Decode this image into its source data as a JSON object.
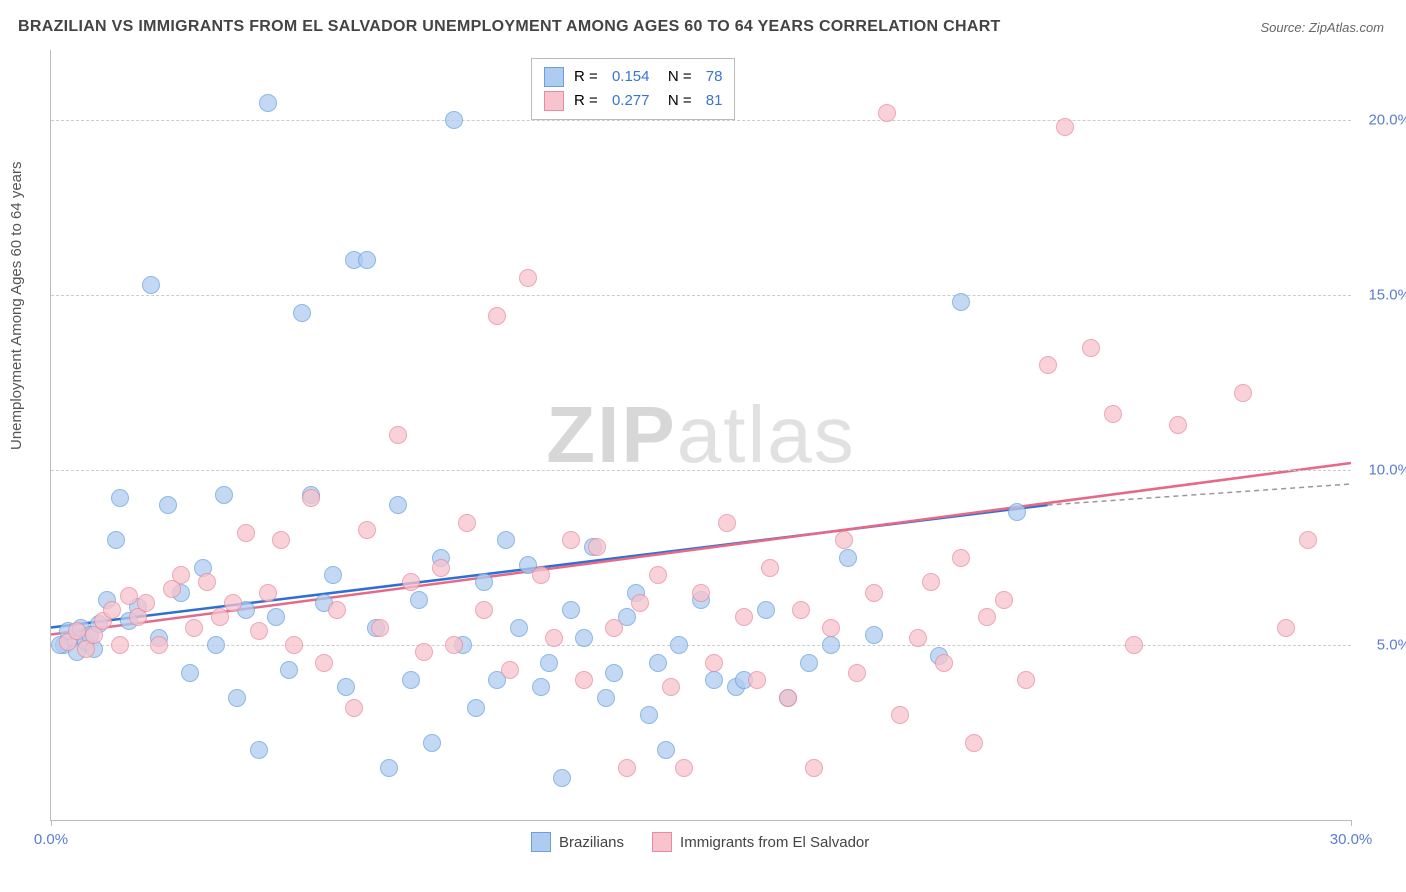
{
  "title": "BRAZILIAN VS IMMIGRANTS FROM EL SALVADOR UNEMPLOYMENT AMONG AGES 60 TO 64 YEARS CORRELATION CHART",
  "source": "Source: ZipAtlas.com",
  "ylabel": "Unemployment Among Ages 60 to 64 years",
  "watermark_a": "ZIP",
  "watermark_b": "atlas",
  "chart": {
    "type": "scatter",
    "xlim": [
      0,
      30
    ],
    "ylim": [
      0,
      22
    ],
    "xticks": [
      0,
      30
    ],
    "xtick_labels": [
      "0.0%",
      "30.0%"
    ],
    "yticks": [
      5,
      10,
      15,
      20
    ],
    "ytick_labels": [
      "5.0%",
      "10.0%",
      "15.0%",
      "20.0%"
    ],
    "grid_color": "#cccccc",
    "marker_radius": 8,
    "series": [
      {
        "name": "Brazilians",
        "fill": "#aeccf0",
        "stroke": "#6aa0e0",
        "line_color": "#2f6fd1",
        "r": "0.154",
        "n": "78",
        "trend": {
          "x1": 0,
          "y1": 5.5,
          "x2": 23,
          "y2": 9.0,
          "x2_dash": 30,
          "y2_dash": 9.6
        },
        "points": [
          [
            0.3,
            5.0
          ],
          [
            0.5,
            5.2
          ],
          [
            0.6,
            4.8
          ],
          [
            0.8,
            5.1
          ],
          [
            1.0,
            4.9
          ],
          [
            0.4,
            5.4
          ],
          [
            0.7,
            5.5
          ],
          [
            0.2,
            5.0
          ],
          [
            0.9,
            5.3
          ],
          [
            1.1,
            5.6
          ],
          [
            1.3,
            6.3
          ],
          [
            1.5,
            8.0
          ],
          [
            1.6,
            9.2
          ],
          [
            1.8,
            5.7
          ],
          [
            2.0,
            6.1
          ],
          [
            2.3,
            15.3
          ],
          [
            2.5,
            5.2
          ],
          [
            2.7,
            9.0
          ],
          [
            3.0,
            6.5
          ],
          [
            3.2,
            4.2
          ],
          [
            3.5,
            7.2
          ],
          [
            3.8,
            5.0
          ],
          [
            4.0,
            9.3
          ],
          [
            4.3,
            3.5
          ],
          [
            4.5,
            6.0
          ],
          [
            4.8,
            2.0
          ],
          [
            5.0,
            20.5
          ],
          [
            5.2,
            5.8
          ],
          [
            5.5,
            4.3
          ],
          [
            5.8,
            14.5
          ],
          [
            6.0,
            9.3
          ],
          [
            6.3,
            6.2
          ],
          [
            6.5,
            7.0
          ],
          [
            6.8,
            3.8
          ],
          [
            7.0,
            16.0
          ],
          [
            7.3,
            16.0
          ],
          [
            7.5,
            5.5
          ],
          [
            7.8,
            1.5
          ],
          [
            8.0,
            9.0
          ],
          [
            8.3,
            4.0
          ],
          [
            8.5,
            6.3
          ],
          [
            8.8,
            2.2
          ],
          [
            9.0,
            7.5
          ],
          [
            9.3,
            20.0
          ],
          [
            9.5,
            5.0
          ],
          [
            9.8,
            3.2
          ],
          [
            10.0,
            6.8
          ],
          [
            10.3,
            4.0
          ],
          [
            10.5,
            8.0
          ],
          [
            10.8,
            5.5
          ],
          [
            11.0,
            7.3
          ],
          [
            11.3,
            3.8
          ],
          [
            11.5,
            4.5
          ],
          [
            11.8,
            1.2
          ],
          [
            12.0,
            6.0
          ],
          [
            12.3,
            5.2
          ],
          [
            12.5,
            7.8
          ],
          [
            12.8,
            3.5
          ],
          [
            13.0,
            4.2
          ],
          [
            13.3,
            5.8
          ],
          [
            13.5,
            6.5
          ],
          [
            13.8,
            3.0
          ],
          [
            14.0,
            4.5
          ],
          [
            14.2,
            2.0
          ],
          [
            14.5,
            5.0
          ],
          [
            15.0,
            6.3
          ],
          [
            15.3,
            4.0
          ],
          [
            15.8,
            3.8
          ],
          [
            16.5,
            6.0
          ],
          [
            17.0,
            3.5
          ],
          [
            17.5,
            4.5
          ],
          [
            18.0,
            5.0
          ],
          [
            18.4,
            7.5
          ],
          [
            21.0,
            14.8
          ],
          [
            22.3,
            8.8
          ],
          [
            20.5,
            4.7
          ],
          [
            19.0,
            5.3
          ],
          [
            16.0,
            4.0
          ]
        ]
      },
      {
        "name": "Immigants from El Salvador",
        "label": "Immigrants from El Salvador",
        "fill": "#f7c3cd",
        "stroke": "#e98aa0",
        "line_color": "#e46a88",
        "r": "0.277",
        "n": "81",
        "trend": {
          "x1": 0,
          "y1": 5.3,
          "x2": 30,
          "y2": 10.2
        },
        "points": [
          [
            0.4,
            5.1
          ],
          [
            0.6,
            5.4
          ],
          [
            0.8,
            4.9
          ],
          [
            1.0,
            5.3
          ],
          [
            1.2,
            5.7
          ],
          [
            1.4,
            6.0
          ],
          [
            1.6,
            5.0
          ],
          [
            1.8,
            6.4
          ],
          [
            2.0,
            5.8
          ],
          [
            2.2,
            6.2
          ],
          [
            2.5,
            5.0
          ],
          [
            2.8,
            6.6
          ],
          [
            3.0,
            7.0
          ],
          [
            3.3,
            5.5
          ],
          [
            3.6,
            6.8
          ],
          [
            3.9,
            5.8
          ],
          [
            4.2,
            6.2
          ],
          [
            4.5,
            8.2
          ],
          [
            4.8,
            5.4
          ],
          [
            5.0,
            6.5
          ],
          [
            5.3,
            8.0
          ],
          [
            5.6,
            5.0
          ],
          [
            6.0,
            9.2
          ],
          [
            6.3,
            4.5
          ],
          [
            6.6,
            6.0
          ],
          [
            7.0,
            3.2
          ],
          [
            7.3,
            8.3
          ],
          [
            7.6,
            5.5
          ],
          [
            8.0,
            11.0
          ],
          [
            8.3,
            6.8
          ],
          [
            8.6,
            4.8
          ],
          [
            9.0,
            7.2
          ],
          [
            9.3,
            5.0
          ],
          [
            9.6,
            8.5
          ],
          [
            10.0,
            6.0
          ],
          [
            10.3,
            14.4
          ],
          [
            10.6,
            4.3
          ],
          [
            11.0,
            15.5
          ],
          [
            11.3,
            7.0
          ],
          [
            11.6,
            5.2
          ],
          [
            12.0,
            8.0
          ],
          [
            12.3,
            4.0
          ],
          [
            12.6,
            7.8
          ],
          [
            13.0,
            5.5
          ],
          [
            13.3,
            1.5
          ],
          [
            13.6,
            6.2
          ],
          [
            14.0,
            7.0
          ],
          [
            14.3,
            3.8
          ],
          [
            14.6,
            1.5
          ],
          [
            15.0,
            6.5
          ],
          [
            15.3,
            4.5
          ],
          [
            15.6,
            8.5
          ],
          [
            16.0,
            5.8
          ],
          [
            16.3,
            4.0
          ],
          [
            16.6,
            7.2
          ],
          [
            17.0,
            3.5
          ],
          [
            17.3,
            6.0
          ],
          [
            17.6,
            1.5
          ],
          [
            18.0,
            5.5
          ],
          [
            18.3,
            8.0
          ],
          [
            18.6,
            4.2
          ],
          [
            19.0,
            6.5
          ],
          [
            19.3,
            20.2
          ],
          [
            19.6,
            3.0
          ],
          [
            20.0,
            5.2
          ],
          [
            20.3,
            6.8
          ],
          [
            20.6,
            4.5
          ],
          [
            21.0,
            7.5
          ],
          [
            21.3,
            2.2
          ],
          [
            21.6,
            5.8
          ],
          [
            22.0,
            6.3
          ],
          [
            22.5,
            4.0
          ],
          [
            23.0,
            13.0
          ],
          [
            23.4,
            19.8
          ],
          [
            24.0,
            13.5
          ],
          [
            24.5,
            11.6
          ],
          [
            25.0,
            5.0
          ],
          [
            26.0,
            11.3
          ],
          [
            27.5,
            12.2
          ],
          [
            28.5,
            5.5
          ],
          [
            29.0,
            8.0
          ]
        ]
      }
    ]
  }
}
